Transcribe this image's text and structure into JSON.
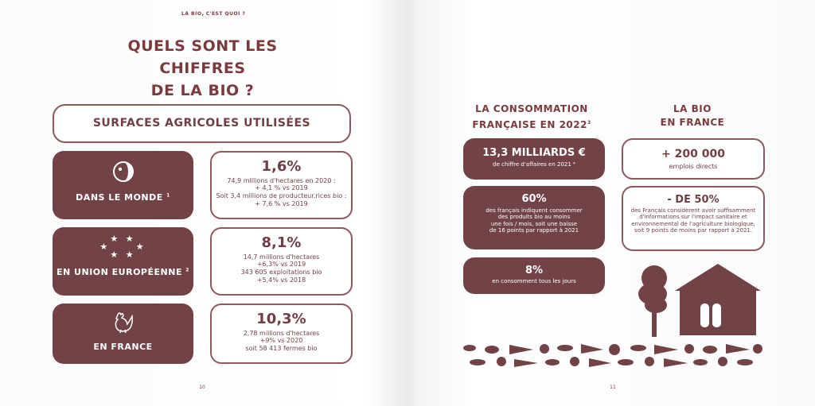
{
  "left_page": {
    "running_head": "LA BIO, C'EST QUOI ?",
    "title_line1": "QUELS SONT LES CHIFFRES",
    "title_line2": "DE LA BIO ?",
    "section_label": "SURFACES AGRICOLES UTILISÉES",
    "page_number": "10",
    "rows": [
      {
        "region_label": "DANS LE MONDE",
        "footnote": "1",
        "icon": "globe-icon",
        "percent": "1,6%",
        "lines": [
          "74,9 millions d'hectares en 2020 :",
          "+ 4,1 % vs 2019",
          "Soit 3,4 millions de producteur.rices bio :",
          "+ 7,6 % vs 2019"
        ]
      },
      {
        "region_label": "EN UNION EUROPÉENNE",
        "footnote": "2",
        "icon": "eu-stars-icon",
        "percent": "8,1%",
        "lines": [
          "14,7 millions d'hectares",
          "+6,3% vs 2019",
          "343 605 exploitations bio",
          "+5,4% vs 2018"
        ]
      },
      {
        "region_label": "EN FRANCE",
        "footnote": "",
        "icon": "rooster-icon",
        "percent": "10,3%",
        "lines": [
          "2,78 millions d'hectares",
          "+9% vs 2020",
          "soit 58 413 fermes bio"
        ]
      }
    ]
  },
  "right_page": {
    "consumption_heading_line1": "LA CONSOMMATION",
    "consumption_heading_line2": "FRANÇAISE EN 2022",
    "consumption_footnote": "3",
    "france_heading_line1": "LA BIO",
    "france_heading_line2": "EN FRANCE",
    "page_number": "11",
    "consumption_cards": [
      {
        "figure": "13,3 MILLIARDS €",
        "lines": [
          "de chiffre d'affaires en 2021 ⁴"
        ]
      },
      {
        "figure": "60%",
        "lines": [
          "des français indiquent consommer",
          "des produits bio au moins",
          "une fois / mois, soit une baisse",
          "de 16 points par rapport à 2021"
        ]
      },
      {
        "figure": "8%",
        "lines": [
          "en consomment tous les jours"
        ]
      }
    ],
    "france_cards": [
      {
        "figure": "+ 200 000",
        "lines": [
          "emplois directs"
        ]
      },
      {
        "figure": "- DE 50%",
        "lines": [
          "des Français considèrent avoir suffisamment",
          "d'informations sur l'impact sanitaire et",
          "environnemental de l'agriculture biologique,",
          "soit 9 points de moins par rapport à 2021."
        ]
      }
    ],
    "illustration_icons": [
      "tree-icon",
      "house-icon",
      "vegetables-icon"
    ]
  },
  "colors": {
    "maroon": "#714246",
    "text": "#6f3f44"
  }
}
